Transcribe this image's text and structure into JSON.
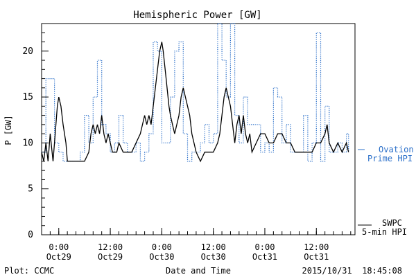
{
  "chart_data": {
    "type": "line",
    "title": "Hemispheric Power [GW]",
    "xlabel": "Date and Time",
    "ylabel": "P [GW]",
    "ylim": [
      0,
      23
    ],
    "xlim": [
      "2015-10-28T20:00",
      "2015-10-31T21:00"
    ],
    "yticks": [
      0,
      5,
      10,
      15,
      20
    ],
    "xticks": [
      {
        "t": "2015-10-29T00:00",
        "label1": "0:00",
        "label2": "Oct29"
      },
      {
        "t": "2015-10-29T12:00",
        "label1": "12:00",
        "label2": "Oct29"
      },
      {
        "t": "2015-10-30T00:00",
        "label1": "0:00",
        "label2": "Oct30"
      },
      {
        "t": "2015-10-30T12:00",
        "label1": "12:00",
        "label2": "Oct30"
      },
      {
        "t": "2015-10-31T00:00",
        "label1": "0:00",
        "label2": "Oct31"
      },
      {
        "t": "2015-10-31T12:00",
        "label1": "12:00",
        "label2": "Oct31"
      }
    ],
    "grid": false,
    "series": [
      {
        "name": "Ovation Prime HPI",
        "style": "dotted-step",
        "color": "#2a6fc9",
        "points": [
          [
            "2015-10-28T20:00",
            9
          ],
          [
            "2015-10-28T21:00",
            17
          ],
          [
            "2015-10-28T23:00",
            10
          ],
          [
            "2015-10-29T00:00",
            9
          ],
          [
            "2015-10-29T01:00",
            8
          ],
          [
            "2015-10-29T05:00",
            9
          ],
          [
            "2015-10-29T06:00",
            13
          ],
          [
            "2015-10-29T07:00",
            10
          ],
          [
            "2015-10-29T08:00",
            15
          ],
          [
            "2015-10-29T09:00",
            19
          ],
          [
            "2015-10-29T10:00",
            12
          ],
          [
            "2015-10-29T11:00",
            11
          ],
          [
            "2015-10-29T12:00",
            9
          ],
          [
            "2015-10-29T13:00",
            10
          ],
          [
            "2015-10-29T14:00",
            13
          ],
          [
            "2015-10-29T15:00",
            10
          ],
          [
            "2015-10-29T16:00",
            9
          ],
          [
            "2015-10-29T18:00",
            10
          ],
          [
            "2015-10-29T19:00",
            8
          ],
          [
            "2015-10-29T20:00",
            9
          ],
          [
            "2015-10-29T21:00",
            11
          ],
          [
            "2015-10-29T22:00",
            21
          ],
          [
            "2015-10-29T23:00",
            20
          ],
          [
            "2015-10-30T00:00",
            10
          ],
          [
            "2015-10-30T02:00",
            15
          ],
          [
            "2015-10-30T03:00",
            20
          ],
          [
            "2015-10-30T04:00",
            21
          ],
          [
            "2015-10-30T05:00",
            11
          ],
          [
            "2015-10-30T06:00",
            8
          ],
          [
            "2015-10-30T07:00",
            9
          ],
          [
            "2015-10-30T09:00",
            10
          ],
          [
            "2015-10-30T10:00",
            12
          ],
          [
            "2015-10-30T11:00",
            10
          ],
          [
            "2015-10-30T12:00",
            11
          ],
          [
            "2015-10-30T13:00",
            23
          ],
          [
            "2015-10-30T14:00",
            19
          ],
          [
            "2015-10-30T15:00",
            15
          ],
          [
            "2015-10-30T16:00",
            23
          ],
          [
            "2015-10-30T17:00",
            13
          ],
          [
            "2015-10-30T18:00",
            10
          ],
          [
            "2015-10-30T19:00",
            15
          ],
          [
            "2015-10-30T20:00",
            12
          ],
          [
            "2015-10-30T23:00",
            9
          ],
          [
            "2015-10-31T00:00",
            10
          ],
          [
            "2015-10-31T01:00",
            9
          ],
          [
            "2015-10-31T02:00",
            16
          ],
          [
            "2015-10-31T03:00",
            15
          ],
          [
            "2015-10-31T04:00",
            10
          ],
          [
            "2015-10-31T05:00",
            12
          ],
          [
            "2015-10-31T06:00",
            9
          ],
          [
            "2015-10-31T09:00",
            13
          ],
          [
            "2015-10-31T10:00",
            8
          ],
          [
            "2015-10-31T11:00",
            10
          ],
          [
            "2015-10-31T12:00",
            22
          ],
          [
            "2015-10-31T13:00",
            8
          ],
          [
            "2015-10-31T14:00",
            14
          ],
          [
            "2015-10-31T15:00",
            9
          ],
          [
            "2015-10-31T17:00",
            10
          ],
          [
            "2015-10-31T18:00",
            9
          ],
          [
            "2015-10-31T19:00",
            11
          ],
          [
            "2015-10-31T19:30",
            9
          ]
        ]
      },
      {
        "name": "SWPC 5-min HPI",
        "style": "solid",
        "color": "#000000",
        "points": [
          [
            "2015-10-28T20:00",
            9
          ],
          [
            "2015-10-28T20:30",
            8
          ],
          [
            "2015-10-28T21:00",
            10
          ],
          [
            "2015-10-28T21:30",
            8
          ],
          [
            "2015-10-28T22:00",
            11
          ],
          [
            "2015-10-28T22:40",
            8
          ],
          [
            "2015-10-28T23:00",
            10
          ],
          [
            "2015-10-28T23:40",
            14
          ],
          [
            "2015-10-29T00:00",
            15
          ],
          [
            "2015-10-29T00:30",
            14
          ],
          [
            "2015-10-29T01:00",
            12
          ],
          [
            "2015-10-29T01:40",
            10
          ],
          [
            "2015-10-29T02:00",
            8
          ],
          [
            "2015-10-29T04:00",
            8
          ],
          [
            "2015-10-29T06:00",
            8
          ],
          [
            "2015-10-29T07:00",
            9
          ],
          [
            "2015-10-29T07:30",
            11
          ],
          [
            "2015-10-29T08:00",
            12
          ],
          [
            "2015-10-29T08:30",
            11
          ],
          [
            "2015-10-29T09:00",
            12
          ],
          [
            "2015-10-29T09:30",
            11
          ],
          [
            "2015-10-29T10:00",
            13
          ],
          [
            "2015-10-29T10:30",
            11
          ],
          [
            "2015-10-29T11:00",
            10
          ],
          [
            "2015-10-29T11:30",
            11
          ],
          [
            "2015-10-29T12:00",
            10
          ],
          [
            "2015-10-29T12:30",
            9
          ],
          [
            "2015-10-29T13:30",
            9
          ],
          [
            "2015-10-29T14:00",
            10
          ],
          [
            "2015-10-29T15:00",
            9
          ],
          [
            "2015-10-29T17:00",
            9
          ],
          [
            "2015-10-29T18:00",
            10
          ],
          [
            "2015-10-29T19:00",
            11
          ],
          [
            "2015-10-29T19:30",
            12
          ],
          [
            "2015-10-29T20:00",
            13
          ],
          [
            "2015-10-29T20:30",
            12
          ],
          [
            "2015-10-29T21:00",
            13
          ],
          [
            "2015-10-29T21:30",
            12
          ],
          [
            "2015-10-29T22:00",
            14
          ],
          [
            "2015-10-29T22:30",
            16
          ],
          [
            "2015-10-29T23:00",
            18
          ],
          [
            "2015-10-29T23:30",
            20
          ],
          [
            "2015-10-30T00:00",
            21
          ],
          [
            "2015-10-30T00:20",
            20
          ],
          [
            "2015-10-30T01:00",
            17
          ],
          [
            "2015-10-30T01:40",
            14
          ],
          [
            "2015-10-30T02:00",
            13
          ],
          [
            "2015-10-30T02:30",
            12
          ],
          [
            "2015-10-30T03:00",
            11
          ],
          [
            "2015-10-30T03:30",
            12
          ],
          [
            "2015-10-30T04:00",
            13
          ],
          [
            "2015-10-30T04:30",
            15
          ],
          [
            "2015-10-30T05:00",
            16
          ],
          [
            "2015-10-30T05:30",
            15
          ],
          [
            "2015-10-30T06:00",
            14
          ],
          [
            "2015-10-30T06:30",
            13
          ],
          [
            "2015-10-30T07:00",
            11
          ],
          [
            "2015-10-30T07:30",
            10
          ],
          [
            "2015-10-30T08:00",
            9
          ],
          [
            "2015-10-30T09:00",
            8
          ],
          [
            "2015-10-30T10:00",
            9
          ],
          [
            "2015-10-30T11:00",
            9
          ],
          [
            "2015-10-30T12:00",
            9
          ],
          [
            "2015-10-30T13:00",
            10
          ],
          [
            "2015-10-30T13:30",
            11
          ],
          [
            "2015-10-30T14:00",
            13
          ],
          [
            "2015-10-30T14:30",
            15
          ],
          [
            "2015-10-30T15:00",
            16
          ],
          [
            "2015-10-30T15:30",
            15
          ],
          [
            "2015-10-30T16:00",
            14
          ],
          [
            "2015-10-30T16:30",
            12
          ],
          [
            "2015-10-30T17:00",
            10
          ],
          [
            "2015-10-30T17:30",
            12
          ],
          [
            "2015-10-30T18:00",
            13
          ],
          [
            "2015-10-30T18:30",
            11
          ],
          [
            "2015-10-30T19:00",
            13
          ],
          [
            "2015-10-30T19:30",
            11
          ],
          [
            "2015-10-30T20:00",
            10
          ],
          [
            "2015-10-30T20:30",
            11
          ],
          [
            "2015-10-30T21:00",
            9
          ],
          [
            "2015-10-30T22:00",
            10
          ],
          [
            "2015-10-30T23:00",
            11
          ],
          [
            "2015-10-31T00:00",
            11
          ],
          [
            "2015-10-31T01:00",
            10
          ],
          [
            "2015-10-31T02:00",
            10
          ],
          [
            "2015-10-31T03:00",
            11
          ],
          [
            "2015-10-31T04:00",
            11
          ],
          [
            "2015-10-31T05:00",
            10
          ],
          [
            "2015-10-31T06:00",
            10
          ],
          [
            "2015-10-31T07:00",
            9
          ],
          [
            "2015-10-31T08:00",
            9
          ],
          [
            "2015-10-31T09:00",
            9
          ],
          [
            "2015-10-31T10:00",
            9
          ],
          [
            "2015-10-31T11:00",
            9
          ],
          [
            "2015-10-31T12:00",
            10
          ],
          [
            "2015-10-31T13:00",
            10
          ],
          [
            "2015-10-31T14:00",
            11
          ],
          [
            "2015-10-31T14:30",
            12
          ],
          [
            "2015-10-31T15:00",
            10
          ],
          [
            "2015-10-31T16:00",
            9
          ],
          [
            "2015-10-31T17:00",
            10
          ],
          [
            "2015-10-31T18:00",
            9
          ],
          [
            "2015-10-31T19:00",
            10
          ],
          [
            "2015-10-31T19:30",
            9
          ]
        ]
      }
    ]
  },
  "legend": {
    "ovation_line1": "Ovation",
    "ovation_line2": "Prime HPI",
    "swpc_line1": "SWPC",
    "swpc_line2": "5-min HPI"
  },
  "footer": {
    "left": "Plot: CCMC",
    "center": "Date and Time",
    "right": "2015/10/31  18:45:08"
  }
}
